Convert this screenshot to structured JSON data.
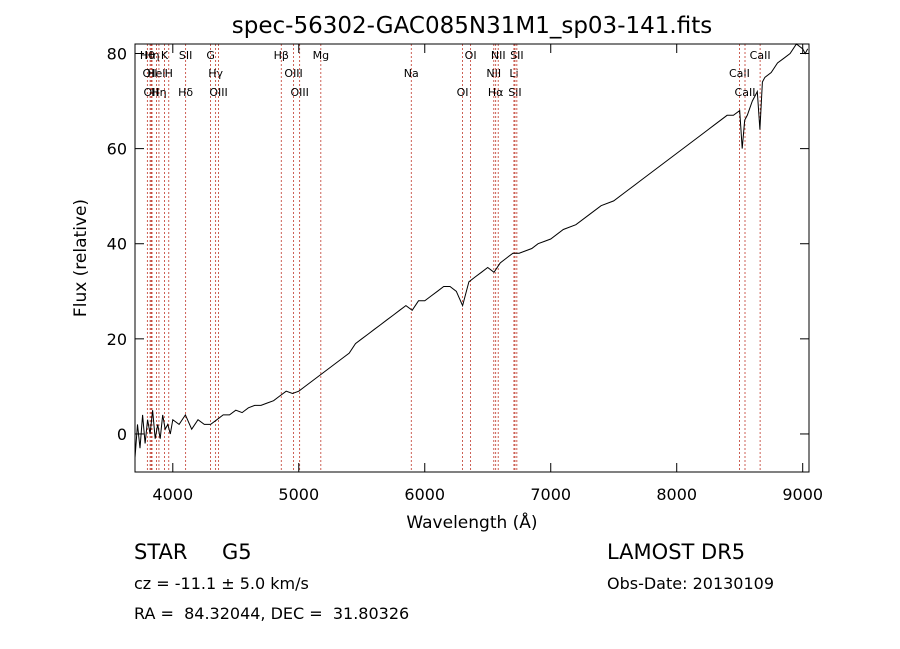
{
  "chart_data": {
    "type": "line",
    "title": "spec-56302-GAC085N31M1_sp03-141.fits",
    "xlabel": "Wavelength (Å)",
    "ylabel": "Flux (relative)",
    "xlim": [
      3700,
      9050
    ],
    "ylim": [
      -8,
      82
    ],
    "xticks": [
      4000,
      5000,
      6000,
      7000,
      8000,
      9000
    ],
    "yticks": [
      0,
      20,
      40,
      60,
      80
    ],
    "grid": false,
    "series": [
      {
        "x": [
          3700,
          3720,
          3740,
          3760,
          3780,
          3800,
          3820,
          3840,
          3860,
          3880,
          3900,
          3920,
          3940,
          3960,
          3980,
          4000,
          4050,
          4100,
          4150,
          4200,
          4250,
          4300,
          4350,
          4400,
          4450,
          4500,
          4550,
          4600,
          4650,
          4700,
          4750,
          4800,
          4850,
          4900,
          4950,
          5000,
          5050,
          5100,
          5150,
          5200,
          5250,
          5300,
          5350,
          5400,
          5450,
          5500,
          5550,
          5600,
          5650,
          5700,
          5750,
          5800,
          5850,
          5900,
          5950,
          6000,
          6050,
          6100,
          6150,
          6200,
          6250,
          6300,
          6350,
          6400,
          6450,
          6500,
          6550,
          6600,
          6650,
          6700,
          6750,
          6800,
          6850,
          6900,
          6950,
          7000,
          7100,
          7200,
          7300,
          7400,
          7500,
          7600,
          7700,
          7800,
          7900,
          8000,
          8100,
          8200,
          8300,
          8400,
          8450,
          8500,
          8520,
          8540,
          8560,
          8600,
          8640,
          8660,
          8680,
          8700,
          8750,
          8800,
          8850,
          8900,
          8950,
          9000,
          9020,
          9040
        ],
        "y": [
          -5,
          2,
          -3,
          4,
          -2,
          3,
          0,
          5,
          -1,
          2,
          -1,
          4,
          1,
          2,
          0,
          3,
          2,
          4,
          1,
          3,
          2,
          2,
          3,
          4,
          4,
          5,
          4.5,
          5.5,
          6,
          6,
          6.5,
          7,
          8,
          9,
          8.5,
          9,
          10,
          11,
          12,
          13,
          14,
          15,
          16,
          17,
          19,
          20,
          21,
          22,
          23,
          24,
          25,
          26,
          27,
          26,
          28,
          28,
          29,
          30,
          31,
          31,
          30,
          27,
          32,
          33,
          34,
          35,
          34,
          36,
          37,
          38,
          38,
          38.5,
          39,
          40,
          40.5,
          41,
          43,
          44,
          46,
          48,
          49,
          51,
          53,
          55,
          57,
          59,
          61,
          63,
          65,
          67,
          67,
          68,
          60,
          66,
          67,
          70,
          72,
          64,
          74,
          75,
          76,
          78,
          79,
          80,
          82,
          81,
          80,
          81
        ]
      }
    ],
    "line_marks": [
      {
        "x": 3798,
        "labels": [
          "Hθ"
        ]
      },
      {
        "x": 3820,
        "labels": [
          "OII"
        ]
      },
      {
        "x": 3828,
        "labels": [
          "OII"
        ]
      },
      {
        "x": 3835,
        "labels": [
          "Hη"
        ]
      },
      {
        "x": 3870,
        "labels": [
          "HeI"
        ]
      },
      {
        "x": 3890,
        "labels": [
          "Hη"
        ]
      },
      {
        "x": 3934,
        "labels": [
          "K"
        ]
      },
      {
        "x": 3968,
        "labels": [
          "H"
        ]
      },
      {
        "x": 4102,
        "labels": [
          "Hδ",
          "SII"
        ]
      },
      {
        "x": 4300,
        "labels": [
          "G"
        ]
      },
      {
        "x": 4340,
        "labels": [
          "Hγ"
        ]
      },
      {
        "x": 4363,
        "labels": [
          "OIII"
        ]
      },
      {
        "x": 4861,
        "labels": [
          "Hβ"
        ]
      },
      {
        "x": 4959,
        "labels": [
          "OIII"
        ]
      },
      {
        "x": 5007,
        "labels": [
          "OIII"
        ]
      },
      {
        "x": 5175,
        "labels": [
          "Mg"
        ]
      },
      {
        "x": 5893,
        "labels": [
          "Na"
        ]
      },
      {
        "x": 6300,
        "labels": [
          "OI"
        ]
      },
      {
        "x": 6364,
        "labels": [
          "OI"
        ]
      },
      {
        "x": 6548,
        "labels": [
          "NII"
        ]
      },
      {
        "x": 6563,
        "labels": [
          "Hα"
        ]
      },
      {
        "x": 6583,
        "labels": [
          "NII"
        ]
      },
      {
        "x": 6708,
        "labels": [
          "Li"
        ]
      },
      {
        "x": 6716,
        "labels": [
          "SII"
        ]
      },
      {
        "x": 6731,
        "labels": [
          "SII"
        ]
      },
      {
        "x": 8498,
        "labels": [
          "CaII"
        ]
      },
      {
        "x": 8542,
        "labels": [
          "CaII"
        ]
      },
      {
        "x": 8662,
        "labels": [
          "CaII"
        ]
      }
    ]
  },
  "info": {
    "class": "STAR",
    "subclass": "G5",
    "survey": "LAMOST DR5",
    "cz": "cz = -11.1 ± 5.0 km/s",
    "obs_date": "Obs-Date: 20130109",
    "coords": "RA =  84.32044, DEC =  31.80326"
  }
}
